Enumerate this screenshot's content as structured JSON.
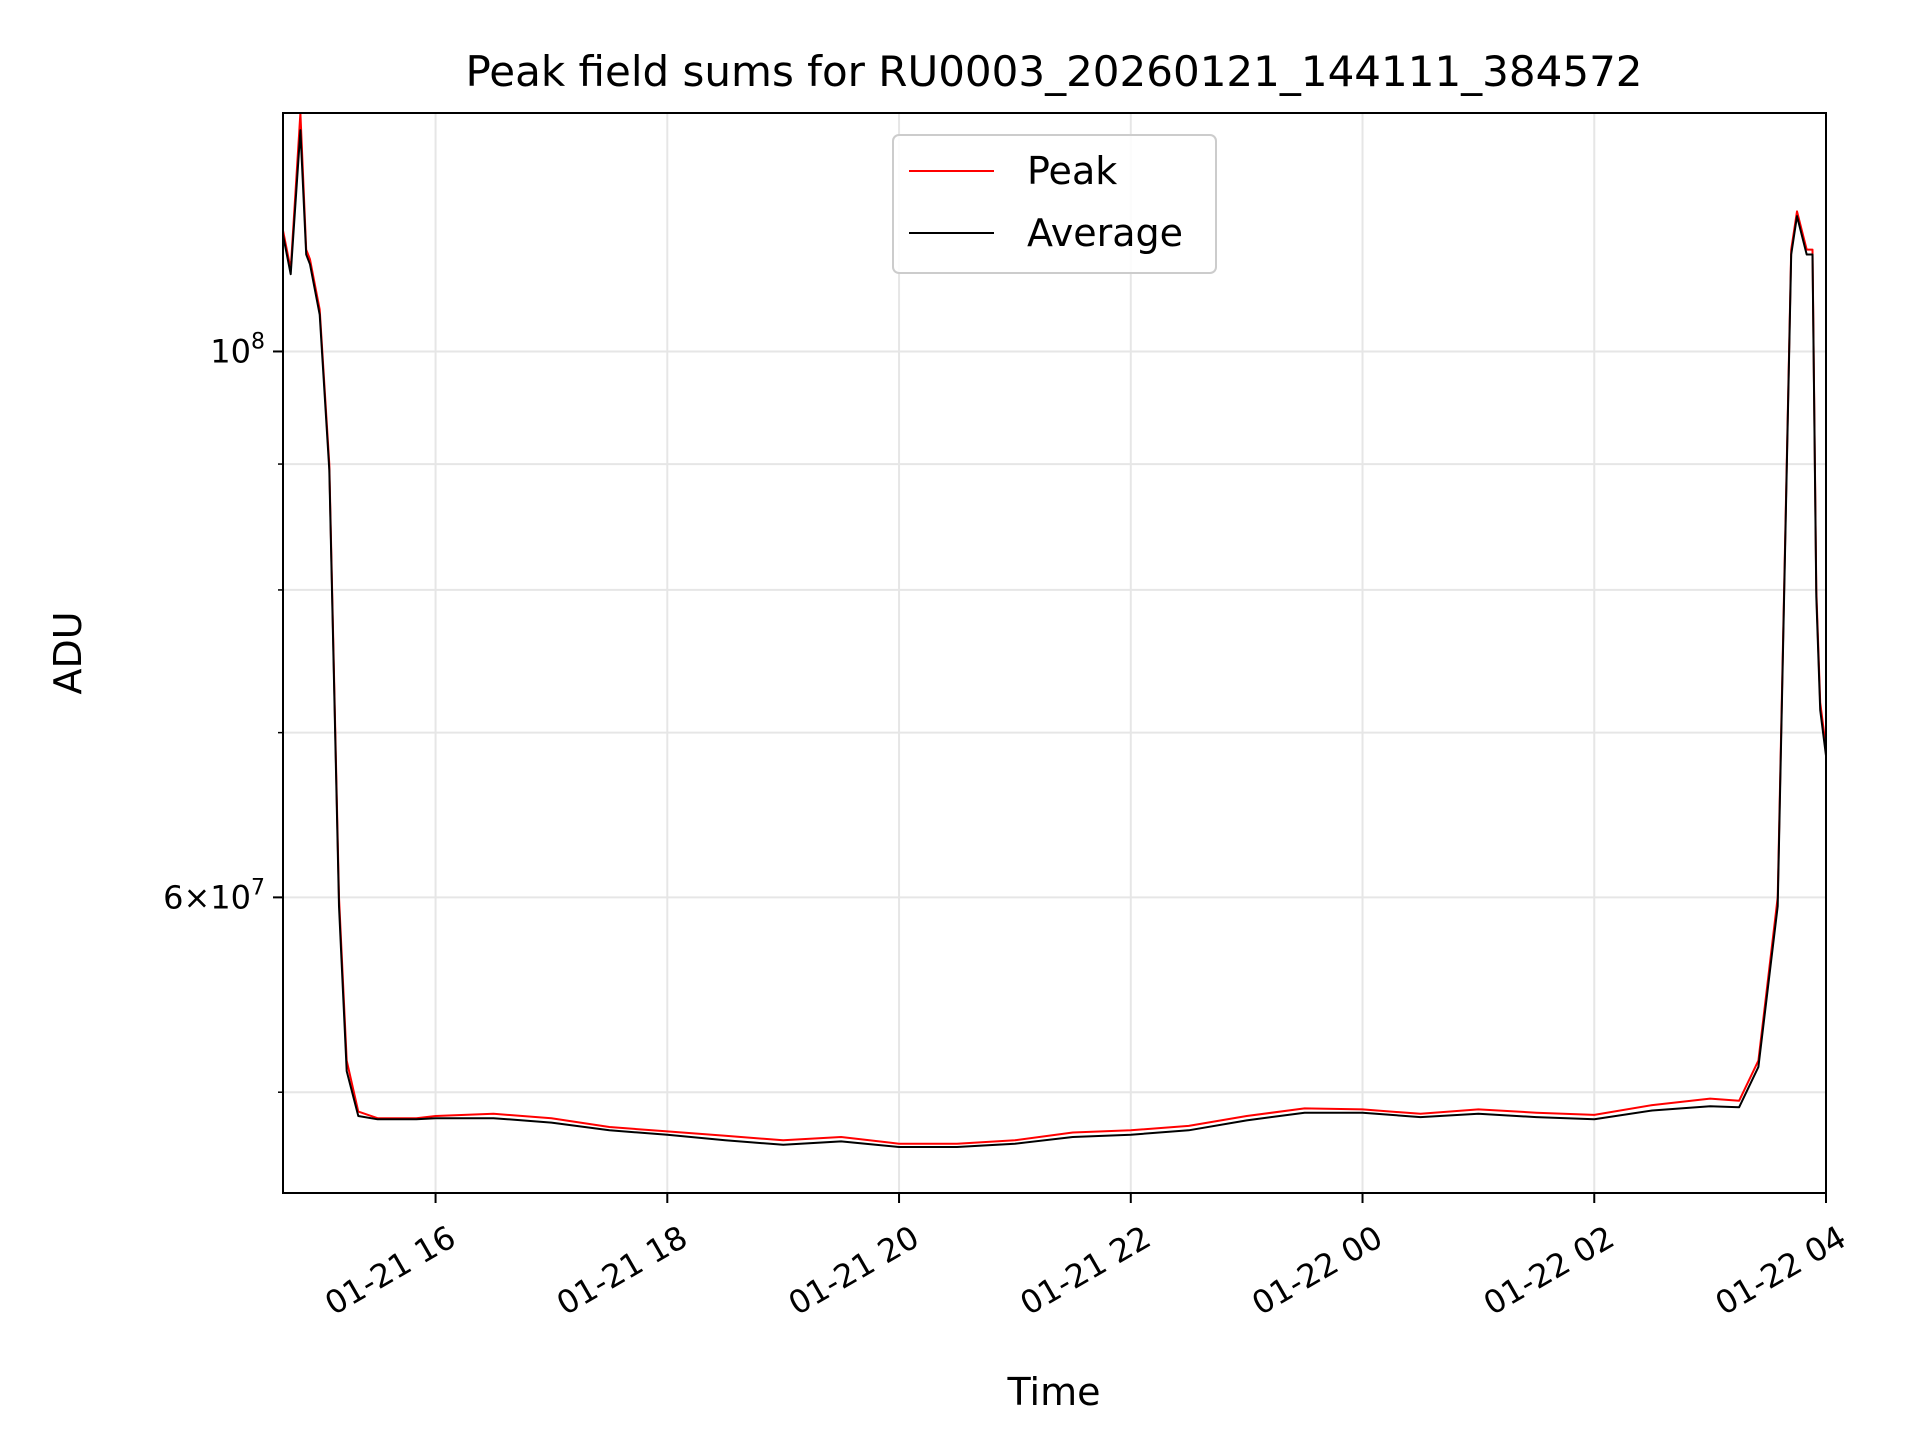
{
  "chart_data": {
    "type": "line",
    "title": "Peak field sums for RU0003_20260121_144111_384572",
    "xlabel": "Time",
    "ylabel": "ADU",
    "yscale": "log",
    "ylim": [
      45500000,
      125000000
    ],
    "xlim": [
      "2026-01-21 14:41",
      "2026-01-22 04:00"
    ],
    "grid": true,
    "legend_position": "top-center",
    "x_tick_labels": [
      "01-21 16",
      "01-21 18",
      "01-21 20",
      "01-21 22",
      "01-22 00",
      "01-22 02",
      "01-22 04"
    ],
    "x_ticks": [
      "2026-01-21 16:00",
      "2026-01-21 18:00",
      "2026-01-21 20:00",
      "2026-01-21 22:00",
      "2026-01-22 00:00",
      "2026-01-22 02:00",
      "2026-01-22 04:00"
    ],
    "y_major_ticks": [
      {
        "value": 100000000,
        "label": "10^8"
      },
      {
        "value": 60000000,
        "label": "6×10^7"
      }
    ],
    "y_minor_ticks": [
      50000000,
      70000000,
      80000000,
      90000000
    ],
    "series": [
      {
        "name": "Peak",
        "color": "#ff0000",
        "x": [
          "2026-01-21 14:41",
          "2026-01-21 14:45",
          "2026-01-21 14:50",
          "2026-01-21 14:53",
          "2026-01-21 14:55",
          "2026-01-21 15:00",
          "2026-01-21 15:05",
          "2026-01-21 15:10",
          "2026-01-21 15:14",
          "2026-01-21 15:20",
          "2026-01-21 15:30",
          "2026-01-21 15:40",
          "2026-01-21 15:50",
          "2026-01-21 16:00",
          "2026-01-21 16:30",
          "2026-01-21 17:00",
          "2026-01-21 17:30",
          "2026-01-21 18:00",
          "2026-01-21 18:30",
          "2026-01-21 19:00",
          "2026-01-21 19:30",
          "2026-01-21 20:00",
          "2026-01-21 20:30",
          "2026-01-21 21:00",
          "2026-01-21 21:30",
          "2026-01-21 22:00",
          "2026-01-21 22:30",
          "2026-01-21 23:00",
          "2026-01-21 23:30",
          "2026-01-22 00:00",
          "2026-01-22 00:30",
          "2026-01-22 01:00",
          "2026-01-22 01:30",
          "2026-01-22 02:00",
          "2026-01-22 02:30",
          "2026-01-22 03:00",
          "2026-01-22 03:15",
          "2026-01-22 03:25",
          "2026-01-22 03:35",
          "2026-01-22 03:42",
          "2026-01-22 03:45",
          "2026-01-22 03:50",
          "2026-01-22 03:53",
          "2026-01-22 03:55",
          "2026-01-22 03:57",
          "2026-01-22 04:00"
        ],
        "values": [
          112000000,
          108000000,
          125000000,
          110000000,
          109000000,
          104000000,
          90000000,
          60000000,
          51500000,
          49100000,
          48800000,
          48800000,
          48800000,
          48900000,
          49000000,
          48800000,
          48400000,
          48200000,
          48000000,
          47800000,
          47950000,
          47650000,
          47650000,
          47800000,
          48150000,
          48250000,
          48450000,
          48900000,
          49250000,
          49200000,
          49000000,
          49200000,
          49050000,
          48950000,
          49400000,
          49700000,
          49600000,
          51500000,
          60000000,
          110000000,
          114000000,
          110000000,
          110000000,
          80000000,
          72000000,
          69000000
        ]
      },
      {
        "name": "Average",
        "color": "#000000",
        "x": [
          "2026-01-21 14:41",
          "2026-01-21 14:45",
          "2026-01-21 14:50",
          "2026-01-21 14:53",
          "2026-01-21 14:55",
          "2026-01-21 15:00",
          "2026-01-21 15:05",
          "2026-01-21 15:10",
          "2026-01-21 15:14",
          "2026-01-21 15:20",
          "2026-01-21 15:30",
          "2026-01-21 15:40",
          "2026-01-21 15:50",
          "2026-01-21 16:00",
          "2026-01-21 16:30",
          "2026-01-21 17:00",
          "2026-01-21 17:30",
          "2026-01-21 18:00",
          "2026-01-21 18:30",
          "2026-01-21 19:00",
          "2026-01-21 19:30",
          "2026-01-21 20:00",
          "2026-01-21 20:30",
          "2026-01-21 21:00",
          "2026-01-21 21:30",
          "2026-01-21 22:00",
          "2026-01-21 22:30",
          "2026-01-21 23:00",
          "2026-01-21 23:30",
          "2026-01-22 00:00",
          "2026-01-22 00:30",
          "2026-01-22 01:00",
          "2026-01-22 01:30",
          "2026-01-22 02:00",
          "2026-01-22 02:30",
          "2026-01-22 03:00",
          "2026-01-22 03:15",
          "2026-01-22 03:25",
          "2026-01-22 03:35",
          "2026-01-22 03:42",
          "2026-01-22 03:45",
          "2026-01-22 03:50",
          "2026-01-22 03:53",
          "2026-01-22 03:55",
          "2026-01-22 03:57",
          "2026-01-22 04:00"
        ],
        "values": [
          111500000,
          107500000,
          123000000,
          109500000,
          108500000,
          103500000,
          89500000,
          59500000,
          51000000,
          48900000,
          48750000,
          48750000,
          48750000,
          48800000,
          48800000,
          48600000,
          48250000,
          48050000,
          47800000,
          47600000,
          47750000,
          47500000,
          47500000,
          47650000,
          47950000,
          48050000,
          48250000,
          48700000,
          49050000,
          49050000,
          48850000,
          49000000,
          48850000,
          48750000,
          49150000,
          49350000,
          49300000,
          51200000,
          59500000,
          109500000,
          113500000,
          109500000,
          109500000,
          79500000,
          71500000,
          68500000
        ]
      }
    ]
  }
}
